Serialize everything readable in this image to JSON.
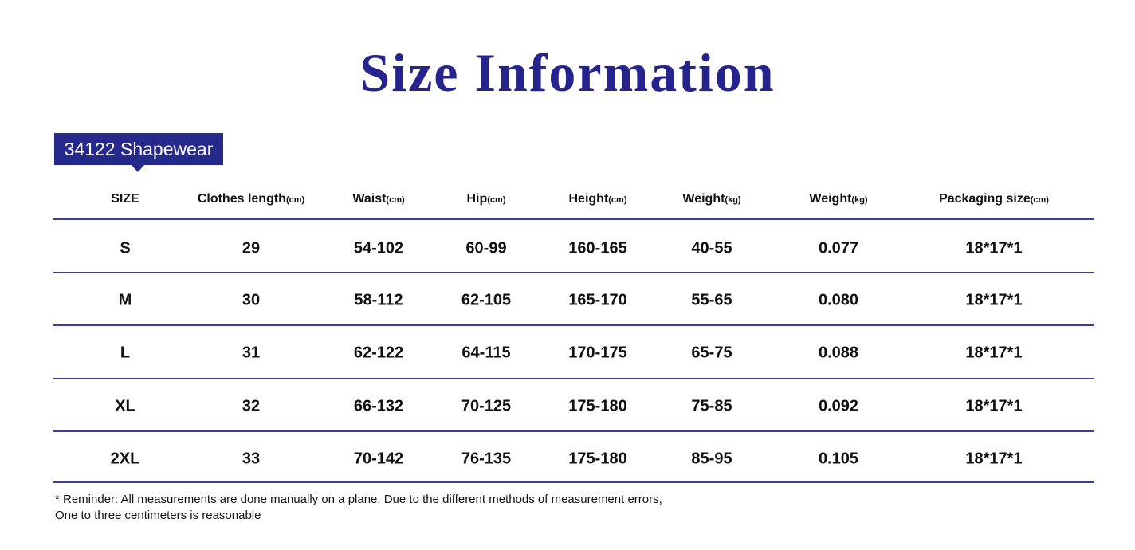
{
  "header": {
    "title": "Size Information",
    "tag": "34122 Shapewear"
  },
  "table": {
    "columns": [
      {
        "name": "SIZE"
      },
      {
        "name": "Clothes length",
        "unit": "(cm)"
      },
      {
        "name": "Waist",
        "unit": "(cm)"
      },
      {
        "name": "Hip",
        "unit": "(cm)"
      },
      {
        "name": "Height",
        "unit": "(cm)"
      },
      {
        "name": "Weight",
        "unit": "(kg)"
      },
      {
        "name": "Weight",
        "unit": "(kg)"
      },
      {
        "name": "Packaging size",
        "unit": "(cm)"
      }
    ],
    "rows": [
      [
        "S",
        "29",
        "54-102",
        "60-99",
        "160-165",
        "40-55",
        "0.077",
        "18*17*1"
      ],
      [
        "M",
        "30",
        "58-112",
        "62-105",
        "165-170",
        "55-65",
        "0.080",
        "18*17*1"
      ],
      [
        "L",
        "31",
        "62-122",
        "64-115",
        "170-175",
        "65-75",
        "0.088",
        "18*17*1"
      ],
      [
        "XL",
        "32",
        "66-132",
        "70-125",
        "175-180",
        "75-85",
        "0.092",
        "18*17*1"
      ],
      [
        "2XL",
        "33",
        "70-142",
        "76-135",
        "175-180",
        "85-95",
        "0.105",
        "18*17*1"
      ]
    ]
  },
  "reminder": [
    "* Reminder: All measurements are done manually on a plane. Due to the different methods of measurement errors,",
    "One to three centimeters is reasonable"
  ]
}
